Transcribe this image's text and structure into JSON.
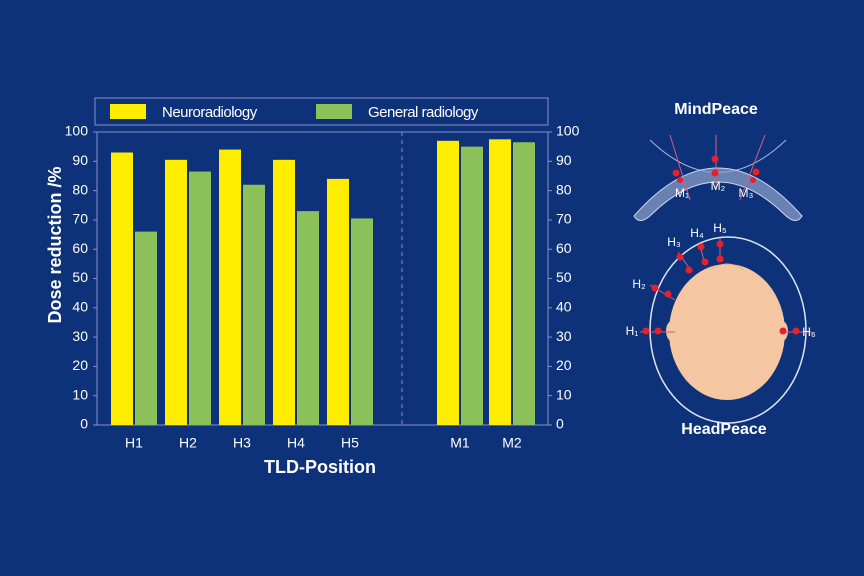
{
  "chart_data": {
    "type": "bar",
    "categories": [
      "H1",
      "H2",
      "H3",
      "H4",
      "H5",
      "M1",
      "M2"
    ],
    "series": [
      {
        "name": "Neuroradiology",
        "color": "#ffed00",
        "values": [
          93,
          90.5,
          94,
          90.5,
          84,
          97,
          97.5
        ]
      },
      {
        "name": "General radiology",
        "color": "#8cc15a",
        "values": [
          66,
          86.5,
          82,
          73,
          70.5,
          95,
          96.5
        ]
      }
    ],
    "xlabel": "TLD-Position",
    "ylabel": "Dose reduction /%",
    "ylim": [
      0,
      100
    ],
    "yticks": [
      0,
      10,
      20,
      30,
      40,
      50,
      60,
      70,
      80,
      90,
      100
    ],
    "y2lim": [
      0,
      100
    ],
    "y2ticks": [
      0,
      10,
      20,
      30,
      40,
      50,
      60,
      70,
      80,
      90,
      100
    ],
    "legend": "top"
  },
  "diagram": {
    "mindpeace": {
      "title": "MindPeace",
      "labels": [
        "M₁",
        "M₂",
        "M₃"
      ]
    },
    "headpeace": {
      "title": "HeadPeace",
      "labels": [
        "H₁",
        "H₂",
        "H₃",
        "H₄",
        "H₅",
        "H₆"
      ]
    }
  }
}
